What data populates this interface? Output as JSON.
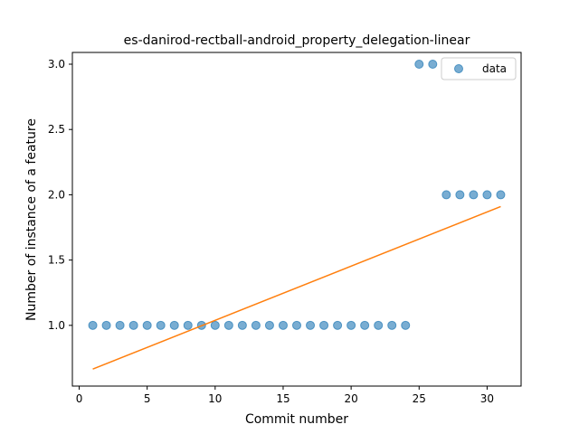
{
  "chart_data": {
    "type": "scatter",
    "title": "es-danirod-rectball-android_property_delegation-linear",
    "xlabel": "Commit number",
    "ylabel": "Number of instance of a feature",
    "xlim": [
      -0.5,
      32.5
    ],
    "ylim": [
      0.535,
      3.09
    ],
    "x_ticks": [
      0,
      5,
      10,
      15,
      20,
      25,
      30
    ],
    "x_tick_labels": [
      "0",
      "5",
      "10",
      "15",
      "20",
      "25",
      "30"
    ],
    "y_ticks": [
      1.0,
      1.5,
      2.0,
      2.5,
      3.0
    ],
    "y_tick_labels": [
      "1.0",
      "1.5",
      "2.0",
      "2.5",
      "3.0"
    ],
    "grid": false,
    "legend_position": "top-right",
    "series": [
      {
        "name": "data",
        "kind": "scatter",
        "color": "#1f77b4",
        "x": [
          1,
          2,
          3,
          4,
          5,
          6,
          7,
          8,
          9,
          10,
          11,
          12,
          13,
          14,
          15,
          16,
          17,
          18,
          19,
          20,
          21,
          22,
          23,
          24,
          25,
          26,
          27,
          28,
          29,
          30,
          31
        ],
        "y": [
          1,
          1,
          1,
          1,
          1,
          1,
          1,
          1,
          1,
          1,
          1,
          1,
          1,
          1,
          1,
          1,
          1,
          1,
          1,
          1,
          1,
          1,
          1,
          1,
          3,
          3,
          2,
          2,
          2,
          2,
          2
        ]
      },
      {
        "kind": "line",
        "color": "#ff7f0e",
        "x": [
          1,
          31
        ],
        "y": [
          0.665,
          1.91
        ]
      }
    ]
  }
}
